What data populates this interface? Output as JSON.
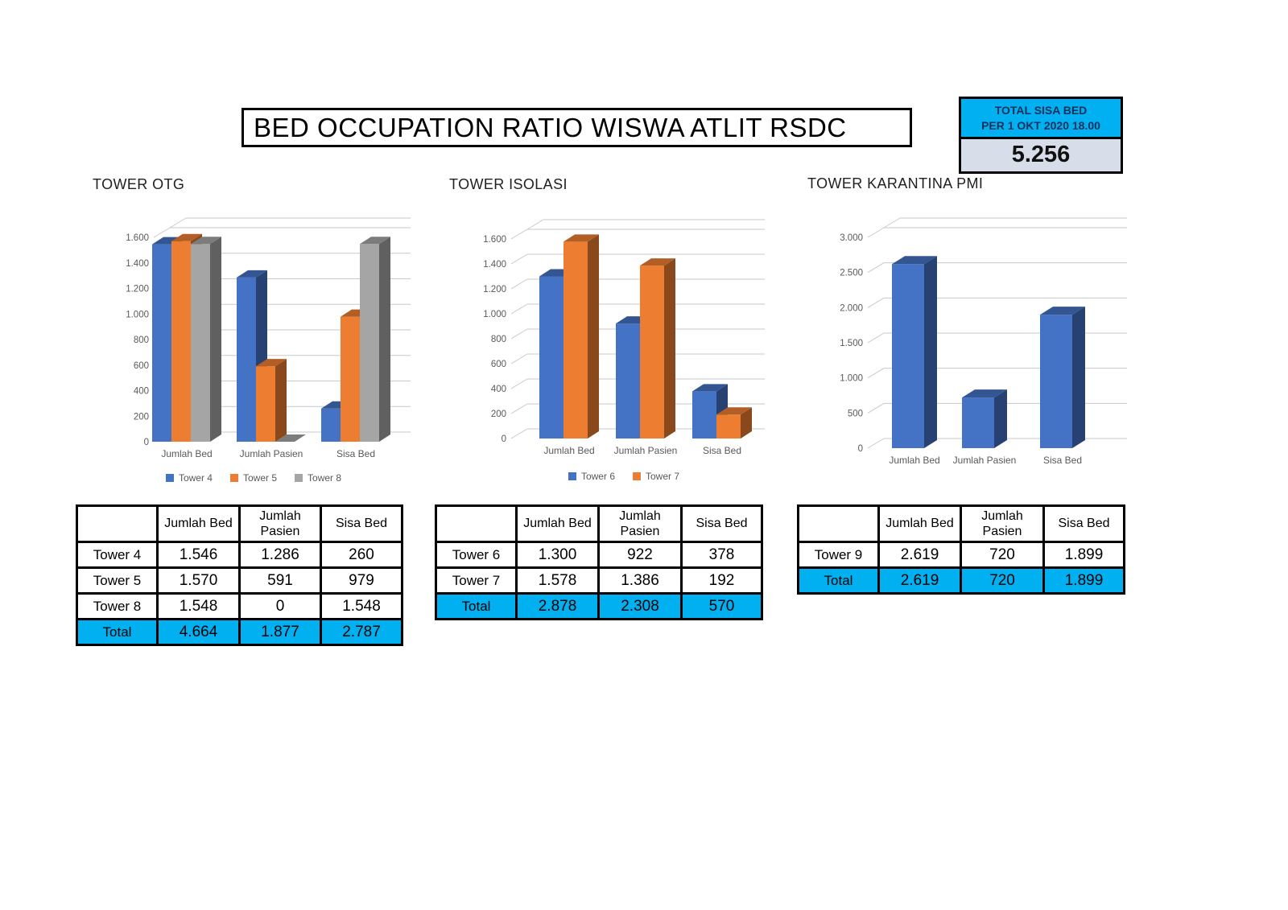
{
  "page": {
    "title": "BED OCCUPATION RATIO WISWA ATLIT RSDC"
  },
  "total_box": {
    "header_line1": "TOTAL SISA BED",
    "header_line2": "PER 1 OKT 2020 18.00",
    "value": "5.256"
  },
  "colors": {
    "cyan": "#00B0F0",
    "value_bg": "#D8DEE9",
    "series_blue": "#4472C4",
    "series_orange": "#ED7D31",
    "series_gray": "#A5A5A5",
    "gridline": "#C9C9C9",
    "axis_text": "#595959"
  },
  "chart_data": [
    {
      "type": "bar",
      "title": "TOWER OTG",
      "categories": [
        "Jumlah Bed",
        "Jumlah Pasien",
        "Sisa Bed"
      ],
      "series": [
        {
          "name": "Tower 4",
          "color": "#4472C4",
          "values": [
            1546,
            1286,
            260
          ]
        },
        {
          "name": "Tower 5",
          "color": "#ED7D31",
          "values": [
            1570,
            591,
            979
          ]
        },
        {
          "name": "Tower 8",
          "color": "#A5A5A5",
          "values": [
            1548,
            0,
            1548
          ]
        }
      ],
      "xlabel": "",
      "ylabel": "",
      "ylim": [
        0,
        1600
      ],
      "ystep": 200,
      "ticks": [
        "0",
        "200",
        "400",
        "600",
        "800",
        "1.000",
        "1.200",
        "1.400",
        "1.600"
      ],
      "grid": true,
      "legend_position": "bottom",
      "legend_show": true
    },
    {
      "type": "bar",
      "title": "TOWER ISOLASI",
      "categories": [
        "Jumlah Bed",
        "Jumlah Pasien",
        "Sisa Bed"
      ],
      "series": [
        {
          "name": "Tower 6",
          "color": "#4472C4",
          "values": [
            1300,
            922,
            378
          ]
        },
        {
          "name": "Tower 7",
          "color": "#ED7D31",
          "values": [
            1578,
            1386,
            192
          ]
        }
      ],
      "xlabel": "",
      "ylabel": "",
      "ylim": [
        0,
        1600
      ],
      "ystep": 200,
      "ticks": [
        "0",
        "200",
        "400",
        "600",
        "800",
        "1.000",
        "1.200",
        "1.400",
        "1.600"
      ],
      "grid": true,
      "legend_position": "bottom",
      "legend_show": true
    },
    {
      "type": "bar",
      "title": "TOWER KARANTINA PMI",
      "categories": [
        "Jumlah Bed",
        "Jumlah Pasien",
        "Sisa Bed"
      ],
      "series": [
        {
          "name": "Tower 9",
          "color": "#4472C4",
          "values": [
            2619,
            720,
            1899
          ]
        }
      ],
      "xlabel": "",
      "ylabel": "",
      "ylim": [
        0,
        3000
      ],
      "ystep": 500,
      "ticks": [
        "0",
        "500",
        "1.000",
        "1.500",
        "2.000",
        "2.500",
        "3.000"
      ],
      "grid": true,
      "legend_position": "none",
      "legend_show": false
    }
  ],
  "tables": [
    {
      "headers": [
        "",
        "Jumlah Bed",
        "Jumlah Pasien",
        "Sisa Bed"
      ],
      "rows": [
        {
          "label": "Tower 4",
          "values": [
            "1.546",
            "1.286",
            "260"
          ]
        },
        {
          "label": "Tower 5",
          "values": [
            "1.570",
            "591",
            "979"
          ]
        },
        {
          "label": "Tower 8",
          "values": [
            "1.548",
            "0",
            "1.548"
          ]
        }
      ],
      "total": {
        "label": "Total",
        "values": [
          "4.664",
          "1.877",
          "2.787"
        ]
      }
    },
    {
      "headers": [
        "",
        "Jumlah Bed",
        "Jumlah Pasien",
        "Sisa Bed"
      ],
      "rows": [
        {
          "label": "Tower 6",
          "values": [
            "1.300",
            "922",
            "378"
          ]
        },
        {
          "label": "Tower 7",
          "values": [
            "1.578",
            "1.386",
            "192"
          ]
        }
      ],
      "total": {
        "label": "Total",
        "values": [
          "2.878",
          "2.308",
          "570"
        ]
      }
    },
    {
      "headers": [
        "",
        "Jumlah Bed",
        "Jumlah Pasien",
        "Sisa Bed"
      ],
      "rows": [
        {
          "label": "Tower 9",
          "values": [
            "2.619",
            "720",
            "1.899"
          ]
        }
      ],
      "total": {
        "label": "Total",
        "values": [
          "2.619",
          "720",
          "1.899"
        ]
      }
    }
  ]
}
